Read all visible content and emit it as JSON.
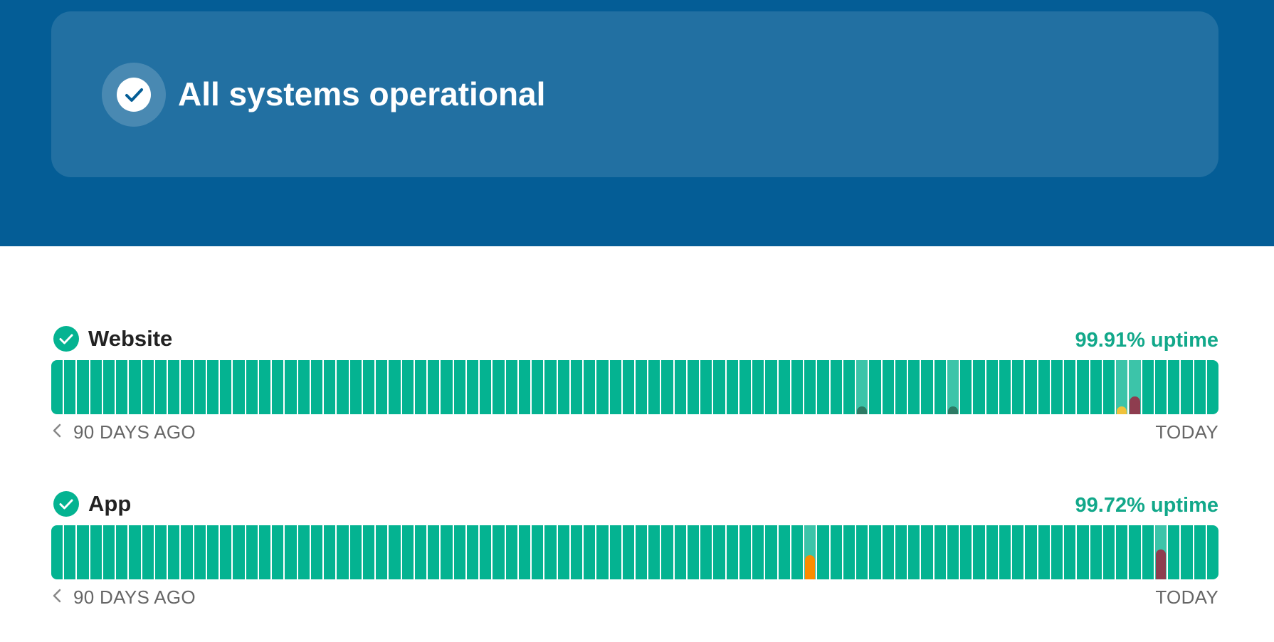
{
  "header": {
    "status_text": "All systems operational",
    "status_icon": "check-circle-icon",
    "background": "#045d96"
  },
  "colors": {
    "operational": "#04b391",
    "operational_muted": "#3cc4a9",
    "minor": "#2d7a64",
    "degraded": "#f0c23b",
    "partial": "#fb8c00",
    "major": "#8e3d4f"
  },
  "components": [
    {
      "name": "Website",
      "uptime": "99.91% uptime",
      "range_start": "90 DAYS AGO",
      "range_end": "TODAY",
      "days": 90,
      "incidents": [
        {
          "day": 62,
          "color": "#2d7a64",
          "level": 0.15
        },
        {
          "day": 69,
          "color": "#2d7a64",
          "level": 0.15
        },
        {
          "day": 82,
          "color": "#f0c23b",
          "level": 0.15
        },
        {
          "day": 83,
          "color": "#8e3d4f",
          "level": 0.33
        }
      ]
    },
    {
      "name": "App",
      "uptime": "99.72% uptime",
      "range_start": "90 DAYS AGO",
      "range_end": "TODAY",
      "days": 90,
      "incidents": [
        {
          "day": 58,
          "color": "#fb8c00",
          "level": 0.45
        },
        {
          "day": 85,
          "color": "#8e3d4f",
          "level": 0.55
        }
      ]
    }
  ]
}
